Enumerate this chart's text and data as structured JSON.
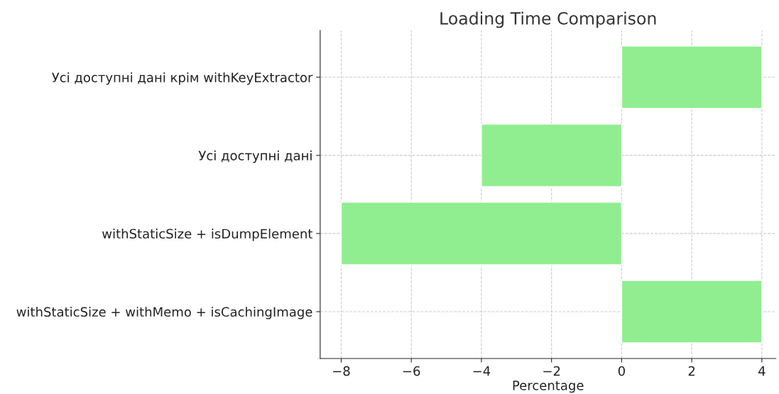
{
  "chart_data": {
    "type": "bar",
    "orientation": "horizontal",
    "title": "Loading Time Comparison",
    "xlabel": "Percentage",
    "categories": [
      "Усі доступні дані крім withKeyExtractor",
      "Усі доступні дані",
      "withStaticSize + isDumpElement",
      "withStaticSize + withMemo + isCachingImage"
    ],
    "values": [
      4,
      -4,
      -8,
      4
    ],
    "color": "#90ee90",
    "xlim": [
      -8.6,
      4.4
    ],
    "xticks": [
      {
        "value": -8,
        "label": "−8"
      },
      {
        "value": -6,
        "label": "−6"
      },
      {
        "value": -4,
        "label": "−4"
      },
      {
        "value": -2,
        "label": "−2"
      },
      0,
      2,
      4
    ],
    "grid": true,
    "line_style": "dashed"
  }
}
